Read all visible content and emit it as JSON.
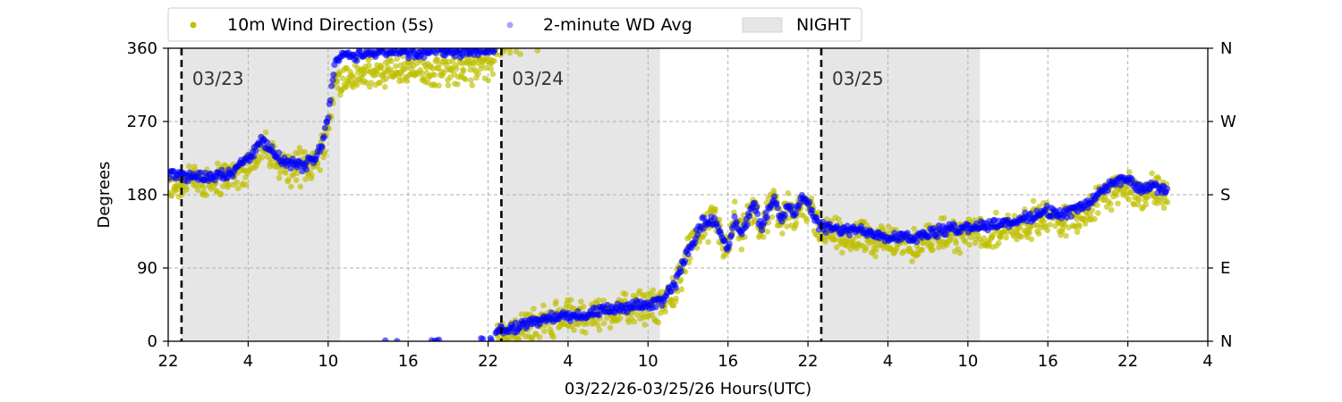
{
  "chart_data": {
    "type": "scatter",
    "xlabel": "03/22/26-03/25/26  Hours(UTC)",
    "ylabel": "Degrees",
    "x_range_hours": [
      22,
      100
    ],
    "ylim": [
      0,
      360
    ],
    "x_ticks": [
      {
        "hour": 22,
        "label": "22"
      },
      {
        "hour": 28,
        "label": "4"
      },
      {
        "hour": 34,
        "label": "10"
      },
      {
        "hour": 40,
        "label": "16"
      },
      {
        "hour": 46,
        "label": "22"
      },
      {
        "hour": 52,
        "label": "4"
      },
      {
        "hour": 58,
        "label": "10"
      },
      {
        "hour": 64,
        "label": "16"
      },
      {
        "hour": 70,
        "label": "22"
      },
      {
        "hour": 76,
        "label": "4"
      },
      {
        "hour": 82,
        "label": "10"
      },
      {
        "hour": 88,
        "label": "16"
      },
      {
        "hour": 94,
        "label": "22"
      },
      {
        "hour": 100,
        "label": "4"
      }
    ],
    "y_ticks": [
      {
        "value": 0,
        "label": "0"
      },
      {
        "value": 90,
        "label": "90"
      },
      {
        "value": 180,
        "label": "180"
      },
      {
        "value": 270,
        "label": "270"
      },
      {
        "value": 360,
        "label": "360"
      }
    ],
    "y2_ticks": [
      {
        "value": 0,
        "label": "N"
      },
      {
        "value": 90,
        "label": "E"
      },
      {
        "value": 180,
        "label": "S"
      },
      {
        "value": 270,
        "label": "W"
      },
      {
        "value": 360,
        "label": "N"
      }
    ],
    "grid": true,
    "legend_position": "top",
    "legend": [
      {
        "label": "10m Wind Direction (5s)",
        "kind": "marker",
        "color": "#bfbf00"
      },
      {
        "label": "2-minute WD Avg",
        "kind": "marker",
        "color": "#0000ff"
      },
      {
        "label": "NIGHT",
        "kind": "patch",
        "color": "#e6e6e6"
      }
    ],
    "night_periods": [
      [
        23.0,
        34.9
      ],
      [
        47.0,
        58.9
      ],
      [
        71.0,
        82.9
      ]
    ],
    "day_markers": [
      {
        "hour": 23.0,
        "label": "03/23"
      },
      {
        "hour": 47.0,
        "label": "03/24"
      },
      {
        "hour": 71.0,
        "label": "03/25"
      }
    ],
    "series": [
      {
        "name": "10m Wind Direction (5s)",
        "color": "#bfbf00",
        "x": [
          22,
          23,
          24,
          25,
          26,
          27,
          28,
          29,
          30,
          31,
          32,
          33,
          33.6,
          34,
          34.5,
          35,
          36,
          37,
          38,
          39,
          40,
          41,
          42,
          43,
          44,
          45,
          46,
          47,
          48,
          49,
          50,
          51,
          52,
          53,
          54,
          55,
          56,
          57,
          58,
          59,
          60,
          61,
          62,
          63,
          63.5,
          64,
          64.5,
          65,
          65.5,
          66,
          66.5,
          67,
          67.5,
          68,
          68.5,
          69,
          69.5,
          70,
          70.5,
          71,
          72,
          73,
          74,
          75,
          76,
          77,
          78,
          79,
          80,
          81,
          82,
          83,
          84,
          85,
          86,
          87,
          88,
          89,
          90,
          91,
          92,
          93,
          94,
          95,
          96,
          97
        ],
        "y": [
          190,
          195,
          200,
          198,
          200,
          205,
          215,
          240,
          222,
          212,
          214,
          220,
          240,
          265,
          318,
          320,
          325,
          328,
          330,
          332,
          330,
          333,
          335,
          337,
          336,
          335,
          338,
          8,
          12,
          18,
          22,
          28,
          30,
          30,
          32,
          35,
          38,
          40,
          42,
          45,
          65,
          105,
          140,
          150,
          125,
          110,
          150,
          125,
          150,
          165,
          135,
          155,
          170,
          140,
          165,
          150,
          175,
          165,
          150,
          135,
          132,
          128,
          130,
          126,
          120,
          122,
          118,
          125,
          128,
          130,
          132,
          134,
          136,
          140,
          142,
          150,
          152,
          148,
          155,
          160,
          175,
          185,
          190,
          180,
          185,
          180
        ],
        "spread": 25
      },
      {
        "name": "2-minute WD Avg",
        "color": "#0000ff",
        "x": [
          22,
          23,
          24,
          25,
          26,
          27,
          28,
          29,
          30,
          31,
          32,
          33,
          33.6,
          34,
          34.5,
          35,
          36,
          37,
          38,
          39,
          40,
          41,
          42,
          43,
          44,
          45,
          46,
          47,
          48,
          49,
          50,
          51,
          52,
          53,
          54,
          55,
          56,
          57,
          58,
          59,
          60,
          61,
          62,
          63,
          63.5,
          64,
          64.5,
          65,
          65.5,
          66,
          66.5,
          67,
          67.5,
          68,
          68.5,
          69,
          69.5,
          70,
          70.5,
          71,
          72,
          73,
          74,
          75,
          76,
          77,
          78,
          79,
          80,
          81,
          82,
          83,
          84,
          85,
          86,
          87,
          88,
          89,
          90,
          91,
          92,
          93,
          94,
          95,
          96,
          97
        ],
        "y": [
          205,
          205,
          202,
          203,
          205,
          210,
          225,
          245,
          230,
          218,
          215,
          225,
          245,
          278,
          345,
          350,
          352,
          354,
          355,
          356,
          355,
          354,
          356,
          357,
          355,
          356,
          358,
          12,
          18,
          22,
          25,
          30,
          32,
          32,
          34,
          38,
          40,
          42,
          45,
          50,
          70,
          110,
          145,
          150,
          130,
          115,
          150,
          130,
          150,
          170,
          140,
          160,
          175,
          145,
          170,
          155,
          180,
          170,
          150,
          140,
          138,
          135,
          137,
          133,
          128,
          130,
          126,
          132,
          136,
          138,
          140,
          142,
          144,
          146,
          148,
          156,
          160,
          155,
          162,
          168,
          185,
          195,
          200,
          185,
          190,
          185
        ],
        "spread": 8
      }
    ]
  }
}
